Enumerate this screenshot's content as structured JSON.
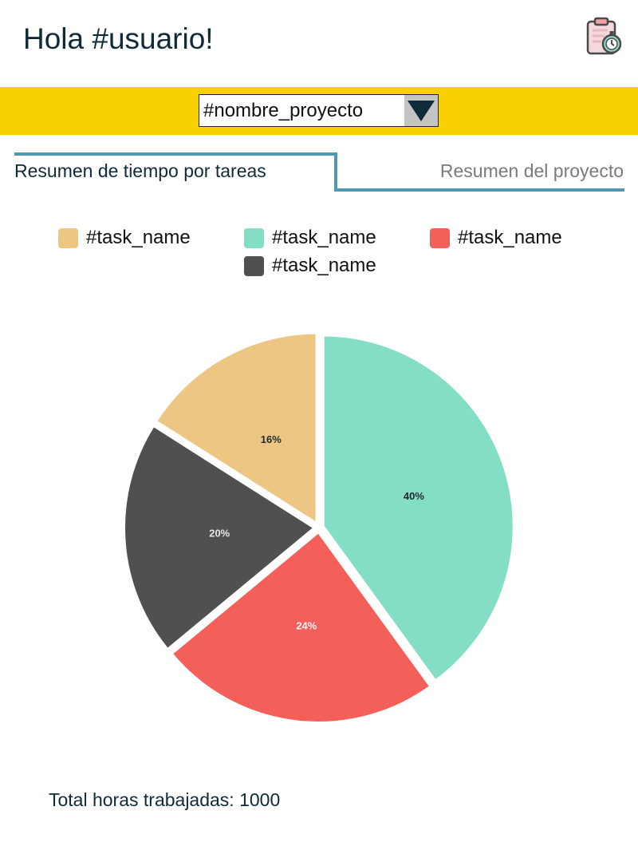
{
  "header": {
    "greeting": "Hola #usuario!",
    "icon": "clipboard-stopwatch-icon"
  },
  "project_selector": {
    "value": "#nombre_proyecto",
    "icon": "triangle-down-icon"
  },
  "tabs": [
    {
      "label": "Resumen de tiempo por tareas",
      "active": true
    },
    {
      "label": "Resumen del proyecto",
      "active": false
    }
  ],
  "colors": {
    "accent": "#f9d100",
    "tab_line": "#4f98b4"
  },
  "chart_data": {
    "type": "pie",
    "title": "",
    "legend_position": "top",
    "slices": [
      {
        "name": "#task_name",
        "value": 40,
        "label": "40%",
        "color": "#84dec6",
        "label_color": "#1f2a2e"
      },
      {
        "name": "#task_name",
        "value": 24,
        "label": "24%",
        "color": "#f45f5a",
        "label_color": "#f4f4f4"
      },
      {
        "name": "#task_name",
        "value": 20,
        "label": "20%",
        "color": "#51504e",
        "label_color": "#e6e6e6"
      },
      {
        "name": "#task_name",
        "value": 16,
        "label": "16%",
        "color": "#edc684",
        "label_color": "#1f2a2e"
      }
    ],
    "legend_order": [
      3,
      0,
      1,
      2
    ]
  },
  "footer": {
    "total_label": "Total horas trabajadas: 1000"
  }
}
